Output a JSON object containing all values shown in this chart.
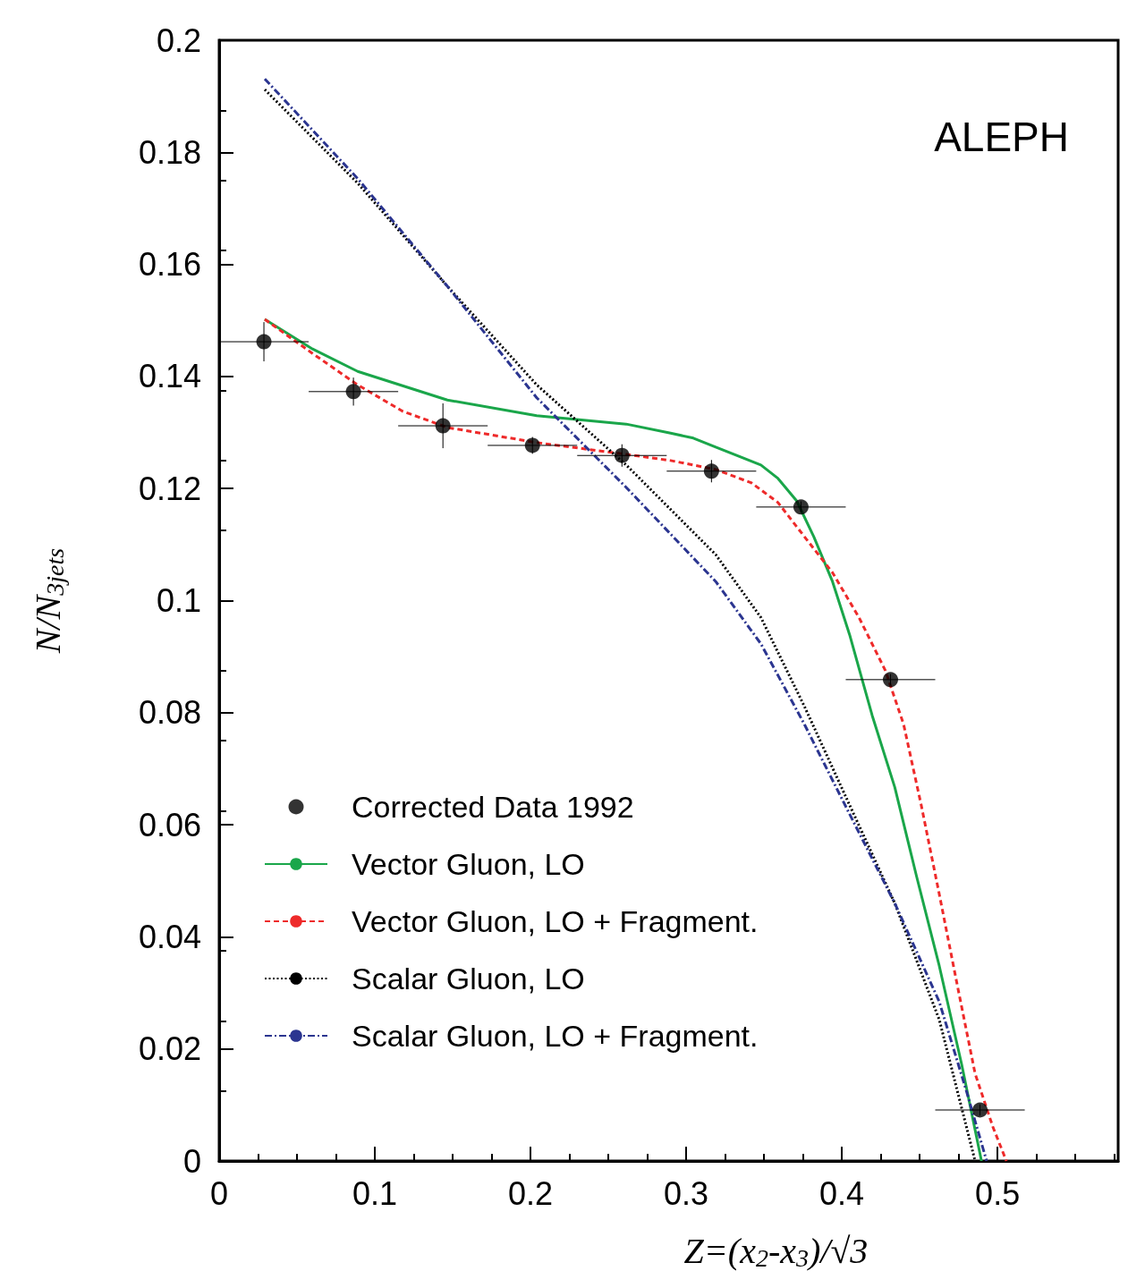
{
  "chart_data": {
    "type": "scatter",
    "xlabel": "Z=(x$_{2}$-x$_{3}$)/√3",
    "ylabel": "N/N$_{3jets}$",
    "annotations": [
      "ALEPH"
    ],
    "xlim": [
      0,
      0.5775
    ],
    "ylim": [
      0,
      0.2
    ],
    "xticks": [
      0,
      0.1,
      0.2,
      0.3,
      0.4,
      0.5
    ],
    "yticks": [
      0,
      0.02,
      0.04,
      0.06,
      0.08,
      0.1,
      0.12,
      0.14,
      0.16,
      0.18,
      0.2
    ],
    "grid": false,
    "legend": "bottom left",
    "series": [
      {
        "name": "Corrected Data 1992",
        "marker": "circle",
        "color": "#000000",
        "x": [
          0.02875,
          0.08625,
          0.14375,
          0.20125,
          0.25875,
          0.31625,
          0.37375,
          0.43125,
          0.48875
        ],
        "values": [
          0.1462,
          0.1373,
          0.1312,
          0.1277,
          0.1259,
          0.1231,
          0.1167,
          0.0859,
          0.0091
        ],
        "errors": [
          0.0035,
          0.0025,
          0.004,
          0.0015,
          0.002,
          0.002,
          0.001,
          0.001,
          0.001
        ],
        "xerrors": [
          0.02875,
          0.02875,
          0.02875,
          0.02875,
          0.02875,
          0.02875,
          0.02875,
          0.02875,
          0.02875
        ]
      },
      {
        "name": "Vector Gluon, LO",
        "type": "line",
        "line_style": "solid",
        "marker": "none",
        "color": "#1aa64a",
        "x": [
          0.0293,
          0.06,
          0.089,
          0.1466,
          0.204,
          0.2615,
          0.29,
          0.3046,
          0.319,
          0.348,
          0.359,
          0.371,
          0.382,
          0.394,
          0.405,
          0.4195,
          0.434,
          0.448,
          0.4626,
          0.477,
          0.4897
        ],
        "values": [
          0.1502,
          0.1449,
          0.1409,
          0.1358,
          0.133,
          0.1315,
          0.1299,
          0.129,
          0.1274,
          0.1242,
          0.1218,
          0.1178,
          0.1114,
          0.1034,
          0.0939,
          0.0795,
          0.0667,
          0.0508,
          0.0348,
          0.0172,
          0
        ]
      },
      {
        "name": "Vector Gluon, LO + Fragment.",
        "type": "line",
        "line_style": "dashed",
        "marker": "none",
        "color": "#ee2a2a",
        "x": [
          0.0293,
          0.06,
          0.089,
          0.1178,
          0.1466,
          0.204,
          0.2615,
          0.29,
          0.319,
          0.342,
          0.359,
          0.376,
          0.394,
          0.411,
          0.428,
          0.4397,
          0.451,
          0.4626,
          0.474,
          0.4856,
          0.497,
          0.5057
        ],
        "values": [
          0.1502,
          0.1441,
          0.1385,
          0.1338,
          0.1309,
          0.1282,
          0.1261,
          0.125,
          0.1234,
          0.121,
          0.1175,
          0.1114,
          0.105,
          0.097,
          0.0875,
          0.0779,
          0.0635,
          0.0476,
          0.0316,
          0.0156,
          0.0061,
          0
        ]
      },
      {
        "name": "Scalar Gluon, LO",
        "type": "line",
        "line_style": "dotted",
        "marker": "none",
        "color": "#000000",
        "x": [
          0.0293,
          0.089,
          0.1466,
          0.204,
          0.2615,
          0.319,
          0.348,
          0.376,
          0.405,
          0.434,
          0.4626,
          0.4856
        ],
        "values": [
          0.1912,
          0.1745,
          0.1561,
          0.1385,
          0.1242,
          0.1082,
          0.097,
          0.0811,
          0.0635,
          0.046,
          0.0252,
          0
        ]
      },
      {
        "name": "Scalar Gluon, LO + Fragment.",
        "type": "line",
        "line_style": "dashdot",
        "marker": "none",
        "color": "#2b3590",
        "x": [
          0.0293,
          0.089,
          0.1466,
          0.204,
          0.2615,
          0.319,
          0.348,
          0.376,
          0.405,
          0.434,
          0.4626,
          0.48,
          0.493
        ],
        "values": [
          0.1931,
          0.1753,
          0.1561,
          0.1362,
          0.1202,
          0.1034,
          0.0923,
          0.0779,
          0.0619,
          0.046,
          0.0284,
          0.0125,
          0
        ]
      }
    ]
  }
}
